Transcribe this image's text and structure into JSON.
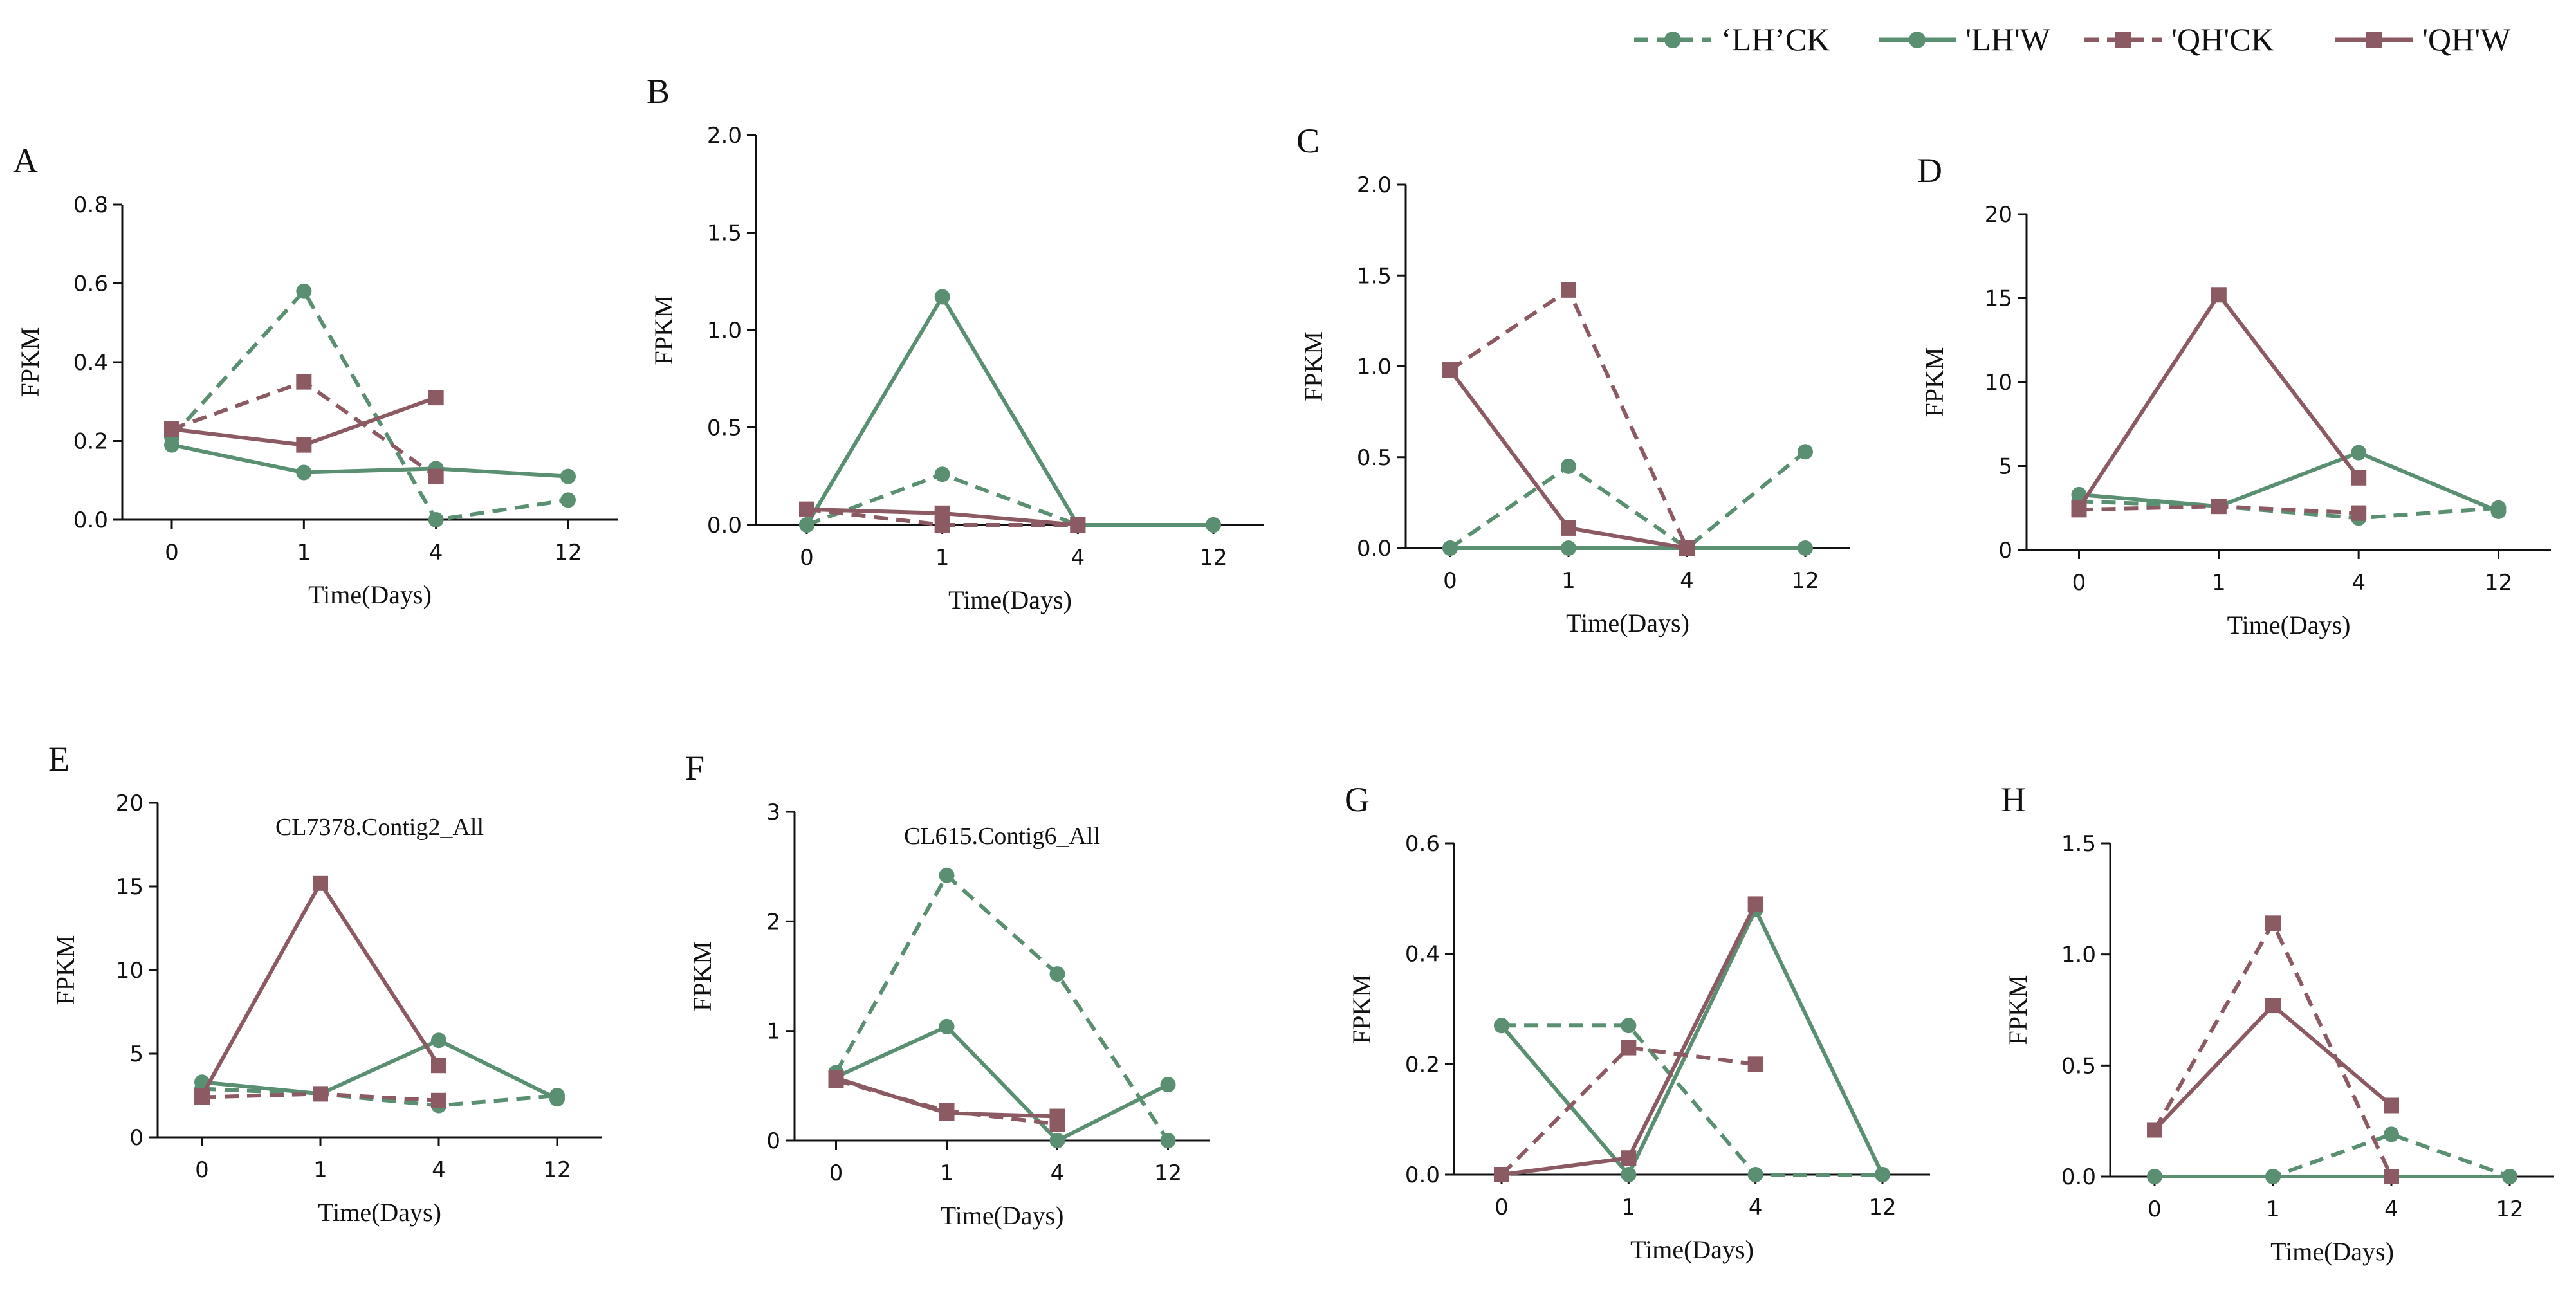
{
  "legend": [
    {
      "label": "‘LH’CK",
      "color": "#5a8f72",
      "dash": true,
      "marker": "circle"
    },
    {
      "label": "'LH'W",
      "color": "#5a8f72",
      "dash": false,
      "marker": "circle"
    },
    {
      "label": "'QH'CK",
      "color": "#8c5a62",
      "dash": true,
      "marker": "square"
    },
    {
      "label": "'QH'W",
      "color": "#8c5a62",
      "dash": false,
      "marker": "square"
    }
  ],
  "chart_data": [
    {
      "type": "line",
      "panel": "A",
      "title": "",
      "xlabel": "Time(Days)",
      "ylabel": "FPKM",
      "categories": [
        "0",
        "1",
        "4",
        "12"
      ],
      "ylim": [
        0,
        0.8
      ],
      "yticks": [
        "0.0",
        "0.2",
        "0.4",
        "0.6",
        "0.8"
      ],
      "series": [
        {
          "name": "‘LH’CK",
          "values": [
            0.21,
            0.58,
            0.0,
            0.05
          ]
        },
        {
          "name": "'LH'W",
          "values": [
            0.19,
            0.12,
            0.13,
            0.11
          ]
        },
        {
          "name": "'QH'CK",
          "values": [
            0.23,
            0.35,
            0.11,
            null
          ]
        },
        {
          "name": "'QH'W",
          "values": [
            0.23,
            0.19,
            0.31,
            null
          ]
        }
      ]
    },
    {
      "type": "line",
      "panel": "B",
      "title": "",
      "xlabel": "Time(Days)",
      "ylabel": "FPKM",
      "categories": [
        "0",
        "1",
        "4",
        "12"
      ],
      "ylim": [
        0,
        2.0
      ],
      "yticks": [
        "0.0",
        "0.5",
        "1.0",
        "1.5",
        "2.0"
      ],
      "series": [
        {
          "name": "‘LH’CK",
          "values": [
            0.0,
            0.26,
            0.0,
            0.0
          ]
        },
        {
          "name": "'LH'W",
          "values": [
            0.0,
            1.17,
            0.0,
            0.0
          ]
        },
        {
          "name": "'QH'CK",
          "values": [
            0.08,
            0.0,
            0.0,
            null
          ]
        },
        {
          "name": "'QH'W",
          "values": [
            0.08,
            0.06,
            0.0,
            null
          ]
        }
      ]
    },
    {
      "type": "line",
      "panel": "C",
      "title": "",
      "xlabel": "Time(Days)",
      "ylabel": "FPKM",
      "categories": [
        "0",
        "1",
        "4",
        "12"
      ],
      "ylim": [
        0,
        2.0
      ],
      "yticks": [
        "0.0",
        "0.5",
        "1.0",
        "1.5",
        "2.0"
      ],
      "series": [
        {
          "name": "‘LH’CK",
          "values": [
            0.0,
            0.45,
            0.0,
            0.53
          ]
        },
        {
          "name": "'LH'W",
          "values": [
            0.0,
            0.0,
            0.0,
            0.0
          ]
        },
        {
          "name": "'QH'CK",
          "values": [
            0.98,
            1.42,
            0.0,
            null
          ]
        },
        {
          "name": "'QH'W",
          "values": [
            0.98,
            0.11,
            0.0,
            null
          ]
        }
      ]
    },
    {
      "type": "line",
      "panel": "D",
      "title": "",
      "xlabel": "Time(Days)",
      "ylabel": "FPKM",
      "categories": [
        "0",
        "1",
        "4",
        "12"
      ],
      "ylim": [
        0,
        20
      ],
      "yticks": [
        "0",
        "5",
        "10",
        "15",
        "20"
      ],
      "series": [
        {
          "name": "‘LH’CK",
          "values": [
            2.9,
            2.6,
            1.9,
            2.5
          ]
        },
        {
          "name": "'LH'W",
          "values": [
            3.3,
            2.6,
            5.8,
            2.3
          ]
        },
        {
          "name": "'QH'CK",
          "values": [
            2.4,
            2.6,
            2.2,
            null
          ]
        },
        {
          "name": "'QH'W",
          "values": [
            2.5,
            15.2,
            4.3,
            null
          ]
        }
      ]
    },
    {
      "type": "line",
      "panel": "E",
      "title": "CL7378.Contig2_All",
      "xlabel": "Time(Days)",
      "ylabel": "FPKM",
      "categories": [
        "0",
        "1",
        "4",
        "12"
      ],
      "ylim": [
        0,
        20
      ],
      "yticks": [
        "0",
        "5",
        "10",
        "15",
        "20"
      ],
      "series": [
        {
          "name": "‘LH’CK",
          "values": [
            2.9,
            2.6,
            1.9,
            2.5
          ]
        },
        {
          "name": "'LH'W",
          "values": [
            3.3,
            2.6,
            5.8,
            2.3
          ]
        },
        {
          "name": "'QH'CK",
          "values": [
            2.4,
            2.6,
            2.2,
            null
          ]
        },
        {
          "name": "'QH'W",
          "values": [
            2.5,
            15.2,
            4.3,
            null
          ]
        }
      ]
    },
    {
      "type": "line",
      "panel": "F",
      "title": "CL615.Contig6_All",
      "xlabel": "Time(Days)",
      "ylabel": "FPKM",
      "categories": [
        "0",
        "1",
        "4",
        "12"
      ],
      "ylim": [
        0,
        3
      ],
      "yticks": [
        "0",
        "1",
        "2",
        "3"
      ],
      "series": [
        {
          "name": "‘LH’CK",
          "values": [
            0.62,
            2.42,
            1.52,
            0.0
          ]
        },
        {
          "name": "'LH'W",
          "values": [
            0.58,
            1.04,
            0.0,
            0.51
          ]
        },
        {
          "name": "'QH'CK",
          "values": [
            0.55,
            0.27,
            0.15,
            null
          ]
        },
        {
          "name": "'QH'W",
          "values": [
            0.57,
            0.25,
            0.22,
            null
          ]
        }
      ]
    },
    {
      "type": "line",
      "panel": "G",
      "title": "",
      "xlabel": "Time(Days)",
      "ylabel": "FPKM",
      "categories": [
        "0",
        "1",
        "4",
        "12"
      ],
      "ylim": [
        0,
        0.6
      ],
      "yticks": [
        "0.0",
        "0.2",
        "0.4",
        "0.6"
      ],
      "series": [
        {
          "name": "‘LH’CK",
          "values": [
            0.27,
            0.27,
            0.0,
            0.0
          ]
        },
        {
          "name": "'LH'W",
          "values": [
            0.27,
            0.0,
            0.48,
            0.0
          ]
        },
        {
          "name": "'QH'CK",
          "values": [
            0.0,
            0.23,
            0.2,
            null
          ]
        },
        {
          "name": "'QH'W",
          "values": [
            0.0,
            0.03,
            0.49,
            null
          ]
        }
      ]
    },
    {
      "type": "line",
      "panel": "H",
      "title": "",
      "xlabel": "Time(Days)",
      "ylabel": "FPKM",
      "categories": [
        "0",
        "1",
        "4",
        "12"
      ],
      "ylim": [
        0,
        1.5
      ],
      "yticks": [
        "0.0",
        "0.5",
        "1.0",
        "1.5"
      ],
      "series": [
        {
          "name": "‘LH’CK",
          "values": [
            0.0,
            0.0,
            0.19,
            0.0
          ]
        },
        {
          "name": "'LH'W",
          "values": [
            0.0,
            0.0,
            0.0,
            0.0
          ]
        },
        {
          "name": "'QH'CK",
          "values": [
            0.21,
            1.14,
            0.0,
            null
          ]
        },
        {
          "name": "'QH'W",
          "values": [
            0.21,
            0.77,
            0.32,
            null
          ]
        }
      ]
    }
  ]
}
